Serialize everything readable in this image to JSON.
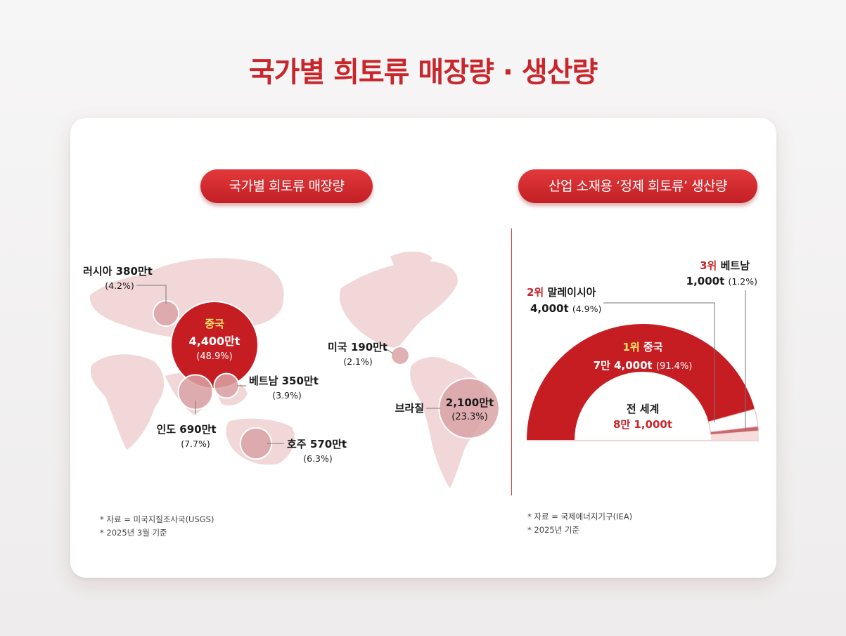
{
  "title": "국가별 희토류 매장량 · 생산량",
  "left_panel": {
    "heading": "국가별 희토류 매장량",
    "notes": [
      "* 자료 = 미국지질조사국(USGS)",
      "* 2025년 3월 기준"
    ]
  },
  "right_panel": {
    "heading": "산업 소재용 ‘정제 희토류’ 생산량",
    "notes": [
      "* 자료 = 국제에너지기구(IEA)",
      "* 2025년 기준"
    ]
  },
  "chart_data": [
    {
      "type": "bubble-map",
      "series": [
        {
          "values": [
            {
              "country": "중국",
              "value_label": "4,400만t",
              "share_label": "(48.9%)",
              "share": 48.9
            },
            {
              "country": "브라질",
              "value_label": "2,100만t",
              "share_label": "(23.3%)",
              "share": 23.3
            },
            {
              "country": "인도",
              "value_label": "690만t",
              "share_label": "(7.7%)",
              "share": 7.7
            },
            {
              "country": "호주",
              "value_label": "570만t",
              "share_label": "(6.3%)",
              "share": 6.3
            },
            {
              "country": "러시아",
              "value_label": "380만t",
              "share_label": "(4.2%)",
              "share": 4.2
            },
            {
              "country": "베트남",
              "value_label": "350만t",
              "share_label": "(3.9%)",
              "share": 3.9
            },
            {
              "country": "미국",
              "value_label": "190만t",
              "share_label": "(2.1%)",
              "share": 2.1
            }
          ]
        }
      ]
    },
    {
      "type": "pie",
      "center_label": "전 세계",
      "center_value": "8만 1,000t",
      "series": [
        {
          "values": [
            {
              "rank": "1위",
              "country": "중국",
              "value_label": "7만 4,000t",
              "share_label": "(91.4%)",
              "share": 91.4
            },
            {
              "rank": "2위",
              "country": "말레이시아",
              "value_label": "4,000t",
              "share_label": "(4.9%)",
              "share": 4.9
            },
            {
              "rank": "3위",
              "country": "베트남",
              "value_label": "1,000t",
              "share_label": "(1.2%)",
              "share": 1.2
            }
          ]
        }
      ]
    }
  ],
  "colors": {
    "accent": "#c8262b",
    "china": "#c61d23",
    "bubble": "#d9a3a6",
    "land": "#f2d7d8",
    "third": "#e8b9bb",
    "rest": "#f6dcdd",
    "highlight": "#ffe36a"
  }
}
